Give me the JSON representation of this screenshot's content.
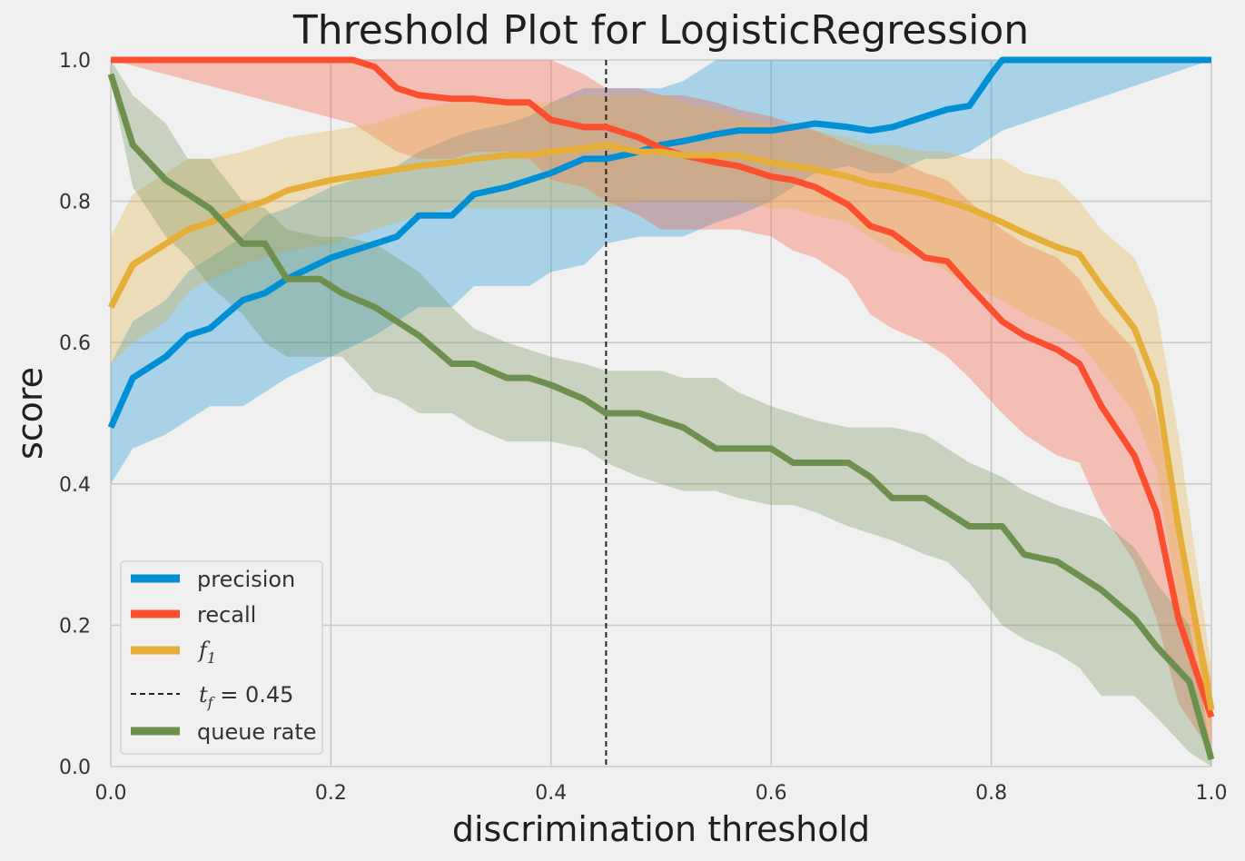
{
  "chart_data": {
    "type": "line",
    "title": "Threshold Plot for LogisticRegression",
    "xlabel": "discrimination threshold",
    "ylabel": "score",
    "xlim": [
      0.0,
      1.0
    ],
    "ylim": [
      0.0,
      1.0
    ],
    "xticks": [
      "0.0",
      "0.2",
      "0.4",
      "0.6",
      "0.8",
      "1.0"
    ],
    "yticks": [
      "0.0",
      "0.2",
      "0.4",
      "0.6",
      "0.8",
      "1.0"
    ],
    "grid": true,
    "legend_position": "lower-left",
    "threshold": {
      "value": 0.45,
      "label": "t_f = 0.45",
      "label_symbol": "t",
      "label_sub": "f",
      "label_rest": " = 0.45",
      "color": "#222222"
    },
    "series": [
      {
        "name": "precision",
        "color": "#008fd5",
        "band_color": "#008fd5",
        "x": [
          0.0,
          0.02,
          0.05,
          0.07,
          0.09,
          0.12,
          0.14,
          0.16,
          0.2,
          0.24,
          0.26,
          0.28,
          0.31,
          0.33,
          0.36,
          0.38,
          0.4,
          0.43,
          0.45,
          0.48,
          0.5,
          0.52,
          0.55,
          0.57,
          0.6,
          0.62,
          0.64,
          0.67,
          0.69,
          0.71,
          0.74,
          0.76,
          0.78,
          0.8,
          0.81,
          1.0
        ],
        "y": [
          0.48,
          0.55,
          0.58,
          0.61,
          0.62,
          0.66,
          0.67,
          0.69,
          0.72,
          0.74,
          0.75,
          0.78,
          0.78,
          0.81,
          0.82,
          0.83,
          0.84,
          0.86,
          0.86,
          0.87,
          0.88,
          0.885,
          0.895,
          0.9,
          0.9,
          0.905,
          0.91,
          0.905,
          0.9,
          0.905,
          0.92,
          0.93,
          0.935,
          0.98,
          1.0,
          1.0
        ],
        "lower": [
          0.4,
          0.45,
          0.47,
          0.49,
          0.51,
          0.51,
          0.53,
          0.55,
          0.58,
          0.61,
          0.63,
          0.65,
          0.65,
          0.68,
          0.68,
          0.68,
          0.7,
          0.71,
          0.74,
          0.75,
          0.75,
          0.75,
          0.77,
          0.78,
          0.8,
          0.82,
          0.84,
          0.85,
          0.84,
          0.84,
          0.86,
          0.86,
          0.87,
          0.89,
          0.9,
          1.0
        ],
        "upper": [
          0.57,
          0.63,
          0.66,
          0.7,
          0.72,
          0.75,
          0.78,
          0.79,
          0.82,
          0.84,
          0.85,
          0.87,
          0.89,
          0.9,
          0.91,
          0.92,
          0.94,
          0.96,
          0.96,
          0.96,
          0.96,
          0.97,
          1.0,
          1.0,
          1.0,
          1.0,
          1.0,
          1.0,
          1.0,
          1.0,
          1.0,
          1.0,
          1.0,
          1.0,
          1.0,
          1.0
        ]
      },
      {
        "name": "recall",
        "color": "#fc4f30",
        "band_color": "#fc4f30",
        "x": [
          0.0,
          0.22,
          0.24,
          0.26,
          0.28,
          0.31,
          0.33,
          0.36,
          0.38,
          0.4,
          0.43,
          0.45,
          0.48,
          0.5,
          0.52,
          0.55,
          0.57,
          0.6,
          0.62,
          0.64,
          0.67,
          0.69,
          0.71,
          0.74,
          0.76,
          0.78,
          0.81,
          0.83,
          0.86,
          0.88,
          0.9,
          0.93,
          0.95,
          0.97,
          1.0
        ],
        "y": [
          1.0,
          1.0,
          0.99,
          0.96,
          0.95,
          0.945,
          0.945,
          0.94,
          0.94,
          0.915,
          0.905,
          0.905,
          0.89,
          0.875,
          0.865,
          0.855,
          0.85,
          0.835,
          0.83,
          0.82,
          0.795,
          0.765,
          0.755,
          0.72,
          0.715,
          0.68,
          0.63,
          0.61,
          0.59,
          0.57,
          0.51,
          0.44,
          0.36,
          0.21,
          0.07
        ],
        "lower": [
          1.0,
          0.91,
          0.89,
          0.87,
          0.86,
          0.86,
          0.87,
          0.87,
          0.86,
          0.83,
          0.82,
          0.8,
          0.78,
          0.76,
          0.76,
          0.76,
          0.76,
          0.75,
          0.73,
          0.72,
          0.69,
          0.64,
          0.62,
          0.6,
          0.58,
          0.55,
          0.5,
          0.47,
          0.44,
          0.43,
          0.36,
          0.29,
          0.21,
          0.09,
          0.02
        ],
        "upper": [
          1.0,
          1.0,
          1.0,
          1.0,
          1.0,
          1.0,
          1.0,
          1.0,
          1.0,
          1.0,
          0.98,
          0.96,
          0.96,
          0.95,
          0.95,
          0.94,
          0.93,
          0.92,
          0.91,
          0.9,
          0.88,
          0.87,
          0.86,
          0.84,
          0.83,
          0.8,
          0.76,
          0.74,
          0.72,
          0.69,
          0.64,
          0.59,
          0.5,
          0.33,
          0.12
        ]
      },
      {
        "name": "f1",
        "label_symbol": "f",
        "label_sub": "1",
        "color": "#e5ae38",
        "band_color": "#e5ae38",
        "x": [
          0.0,
          0.02,
          0.05,
          0.07,
          0.09,
          0.12,
          0.14,
          0.16,
          0.2,
          0.24,
          0.26,
          0.28,
          0.31,
          0.33,
          0.36,
          0.38,
          0.4,
          0.43,
          0.45,
          0.48,
          0.5,
          0.52,
          0.55,
          0.57,
          0.6,
          0.62,
          0.64,
          0.67,
          0.69,
          0.71,
          0.74,
          0.76,
          0.78,
          0.81,
          0.83,
          0.86,
          0.88,
          0.9,
          0.93,
          0.95,
          0.97,
          1.0
        ],
        "y": [
          0.65,
          0.71,
          0.74,
          0.76,
          0.77,
          0.79,
          0.8,
          0.815,
          0.83,
          0.84,
          0.845,
          0.85,
          0.855,
          0.86,
          0.865,
          0.865,
          0.87,
          0.875,
          0.88,
          0.87,
          0.87,
          0.865,
          0.865,
          0.865,
          0.855,
          0.85,
          0.845,
          0.835,
          0.825,
          0.82,
          0.81,
          0.8,
          0.79,
          0.77,
          0.755,
          0.735,
          0.725,
          0.68,
          0.62,
          0.54,
          0.34,
          0.08
        ],
        "lower": [
          0.57,
          0.6,
          0.63,
          0.67,
          0.69,
          0.71,
          0.72,
          0.73,
          0.74,
          0.76,
          0.77,
          0.78,
          0.79,
          0.79,
          0.79,
          0.79,
          0.79,
          0.79,
          0.79,
          0.8,
          0.8,
          0.8,
          0.8,
          0.8,
          0.79,
          0.79,
          0.78,
          0.77,
          0.75,
          0.73,
          0.72,
          0.7,
          0.68,
          0.66,
          0.64,
          0.62,
          0.6,
          0.56,
          0.5,
          0.42,
          0.23,
          0.03
        ],
        "upper": [
          0.75,
          0.81,
          0.84,
          0.86,
          0.86,
          0.87,
          0.88,
          0.89,
          0.9,
          0.91,
          0.92,
          0.93,
          0.94,
          0.94,
          0.94,
          0.94,
          0.94,
          0.95,
          0.95,
          0.95,
          0.95,
          0.94,
          0.93,
          0.92,
          0.91,
          0.9,
          0.9,
          0.89,
          0.88,
          0.88,
          0.87,
          0.87,
          0.86,
          0.86,
          0.84,
          0.83,
          0.8,
          0.76,
          0.72,
          0.65,
          0.47,
          0.14
        ]
      },
      {
        "name": "queue rate",
        "color": "#6d904f",
        "band_color": "#6d904f",
        "x": [
          0.0,
          0.02,
          0.05,
          0.07,
          0.09,
          0.12,
          0.14,
          0.16,
          0.19,
          0.21,
          0.24,
          0.26,
          0.28,
          0.31,
          0.33,
          0.36,
          0.38,
          0.4,
          0.43,
          0.45,
          0.48,
          0.5,
          0.52,
          0.55,
          0.57,
          0.6,
          0.62,
          0.64,
          0.67,
          0.69,
          0.71,
          0.74,
          0.76,
          0.78,
          0.81,
          0.83,
          0.86,
          0.88,
          0.9,
          0.93,
          0.95,
          0.98,
          1.0
        ],
        "y": [
          0.98,
          0.88,
          0.83,
          0.81,
          0.79,
          0.74,
          0.74,
          0.69,
          0.69,
          0.67,
          0.65,
          0.63,
          0.61,
          0.57,
          0.57,
          0.55,
          0.55,
          0.54,
          0.52,
          0.5,
          0.5,
          0.49,
          0.48,
          0.45,
          0.45,
          0.45,
          0.43,
          0.43,
          0.43,
          0.41,
          0.38,
          0.38,
          0.36,
          0.34,
          0.34,
          0.3,
          0.29,
          0.27,
          0.25,
          0.21,
          0.17,
          0.12,
          0.01
        ],
        "lower": [
          0.97,
          0.82,
          0.75,
          0.72,
          0.68,
          0.64,
          0.6,
          0.58,
          0.58,
          0.58,
          0.53,
          0.52,
          0.5,
          0.5,
          0.48,
          0.46,
          0.46,
          0.46,
          0.45,
          0.43,
          0.41,
          0.4,
          0.39,
          0.39,
          0.38,
          0.37,
          0.37,
          0.36,
          0.34,
          0.33,
          0.32,
          0.3,
          0.29,
          0.26,
          0.2,
          0.18,
          0.16,
          0.14,
          0.1,
          0.1,
          0.07,
          0.02,
          0.0
        ],
        "upper": [
          1.0,
          0.95,
          0.91,
          0.86,
          0.86,
          0.8,
          0.79,
          0.76,
          0.75,
          0.75,
          0.74,
          0.72,
          0.7,
          0.65,
          0.62,
          0.6,
          0.59,
          0.58,
          0.57,
          0.56,
          0.56,
          0.56,
          0.55,
          0.55,
          0.53,
          0.51,
          0.5,
          0.49,
          0.48,
          0.48,
          0.48,
          0.47,
          0.45,
          0.43,
          0.41,
          0.39,
          0.37,
          0.36,
          0.35,
          0.31,
          0.26,
          0.2,
          0.02
        ]
      }
    ]
  }
}
